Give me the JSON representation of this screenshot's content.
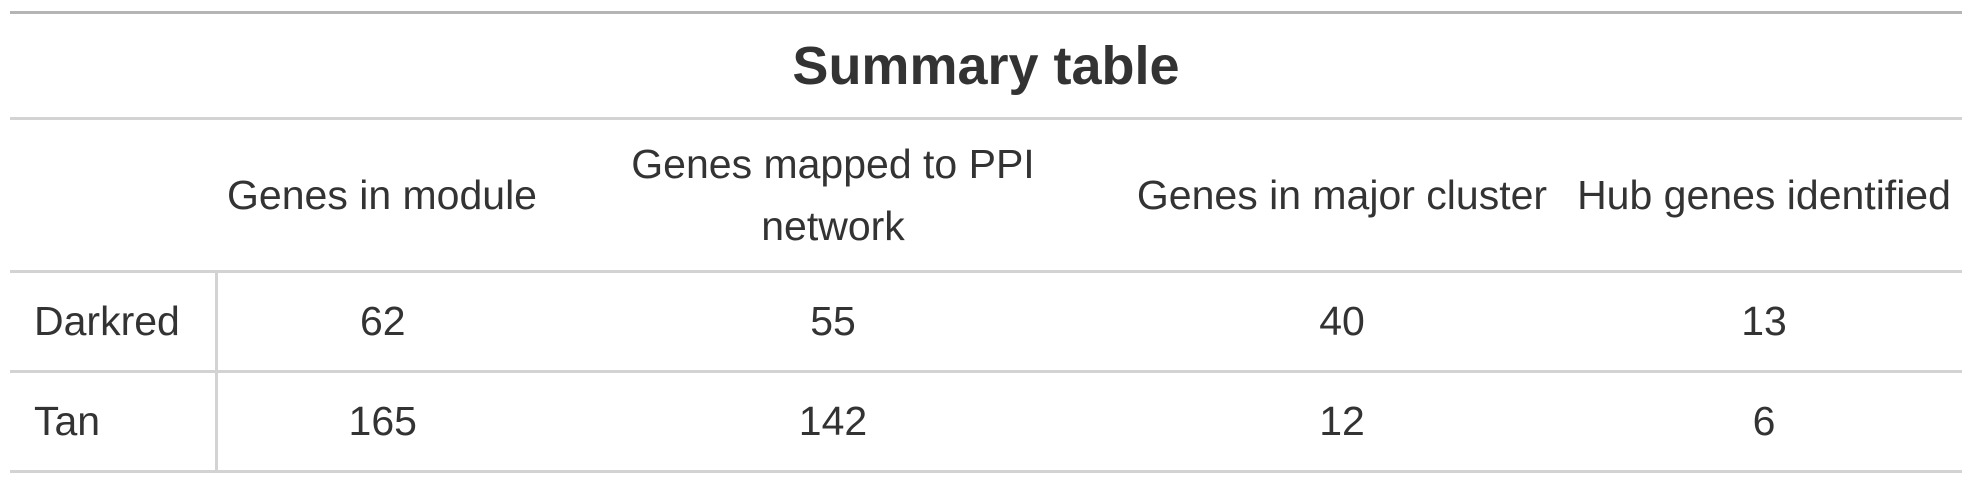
{
  "table": {
    "title": "Summary table",
    "columns": [
      {
        "label": "Genes in module"
      },
      {
        "label": "Genes mapped to PPI network"
      },
      {
        "label": "Genes in major cluster"
      },
      {
        "label": "Hub genes identified"
      }
    ],
    "rows": [
      {
        "label": "Darkred",
        "values": [
          "62",
          "55",
          "40",
          "13"
        ]
      },
      {
        "label": "Tan",
        "values": [
          "165",
          "142",
          "12",
          "6"
        ]
      }
    ]
  }
}
